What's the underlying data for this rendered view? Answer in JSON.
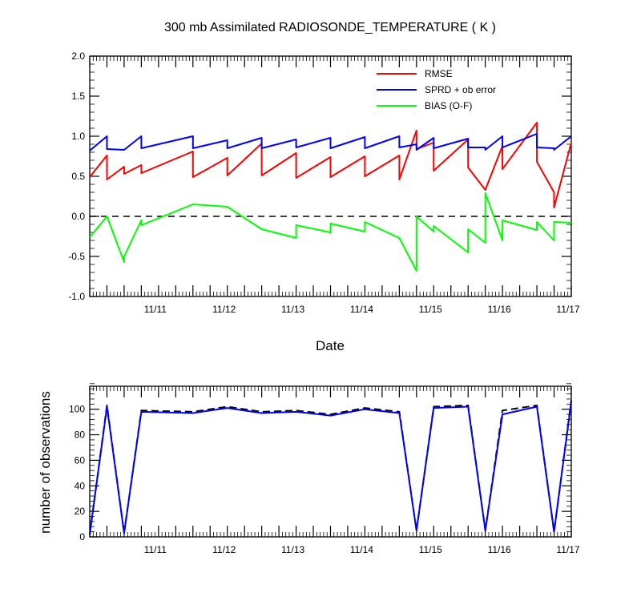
{
  "chart_data": [
    {
      "type": "line",
      "title": "300 mb Assimilated RADIOSONDE_TEMPERATURE ( K )",
      "xlabel": "Date",
      "ylabel": "",
      "x_unit": "days (Nov)",
      "xlim": [
        10.0,
        17.0
      ],
      "ylim": [
        -1.0,
        2.0
      ],
      "y_ticks": [
        -1.0,
        -0.5,
        0.0,
        0.5,
        1.0,
        1.5,
        2.0
      ],
      "y_tick_labels": [
        "-1.0",
        "-0.5",
        "0.0",
        "0.5",
        "1.0",
        "1.5",
        "2.0"
      ],
      "x_tick_labels": [
        {
          "x": 11,
          "label": "11/11"
        },
        {
          "x": 12,
          "label": "11/12"
        },
        {
          "x": 13,
          "label": "11/13"
        },
        {
          "x": 14,
          "label": "11/14"
        },
        {
          "x": 15,
          "label": "11/15"
        },
        {
          "x": 16,
          "label": "11/16"
        },
        {
          "x": 17,
          "label": "11/17"
        }
      ],
      "grid": false,
      "legend": "top-right",
      "reference_line": {
        "y": 0.0,
        "style": "dashed",
        "color": "#000000"
      },
      "series": [
        {
          "name": "RMSE",
          "color": "#ff0000",
          "points": [
            [
              10.0,
              0.49
            ],
            [
              10.25,
              0.76
            ],
            [
              10.25,
              0.46
            ],
            [
              10.5,
              0.62
            ],
            [
              10.5,
              0.53
            ],
            [
              10.75,
              0.64
            ],
            [
              10.75,
              0.54
            ],
            [
              11.5,
              0.81
            ],
            [
              11.5,
              0.49
            ],
            [
              12.0,
              0.73
            ],
            [
              12.0,
              0.51
            ],
            [
              12.5,
              0.91
            ],
            [
              12.5,
              0.51
            ],
            [
              13.0,
              0.79
            ],
            [
              13.0,
              0.48
            ],
            [
              13.5,
              0.74
            ],
            [
              13.5,
              0.49
            ],
            [
              14.0,
              0.75
            ],
            [
              14.0,
              0.5
            ],
            [
              14.5,
              0.76
            ],
            [
              14.5,
              0.46
            ],
            [
              14.75,
              1.07
            ],
            [
              14.75,
              0.84
            ],
            [
              15.0,
              0.92
            ],
            [
              15.0,
              0.57
            ],
            [
              15.5,
              0.96
            ],
            [
              15.5,
              0.61
            ],
            [
              15.75,
              0.33
            ],
            [
              16.0,
              0.88
            ],
            [
              16.0,
              0.59
            ],
            [
              16.5,
              1.17
            ],
            [
              16.5,
              0.68
            ],
            [
              16.75,
              0.3
            ],
            [
              16.75,
              0.11
            ],
            [
              17.0,
              0.92
            ]
          ]
        },
        {
          "name": "SPRD + ob error",
          "color": "#0000ff",
          "points": [
            [
              10.0,
              0.82
            ],
            [
              10.25,
              1.0
            ],
            [
              10.25,
              0.84
            ],
            [
              10.5,
              0.83
            ],
            [
              10.5,
              0.83
            ],
            [
              10.75,
              1.0
            ],
            [
              10.75,
              0.85
            ],
            [
              11.5,
              1.0
            ],
            [
              11.5,
              0.85
            ],
            [
              12.0,
              0.95
            ],
            [
              12.0,
              0.85
            ],
            [
              12.5,
              0.98
            ],
            [
              12.5,
              0.85
            ],
            [
              13.0,
              0.96
            ],
            [
              13.0,
              0.86
            ],
            [
              13.5,
              0.98
            ],
            [
              13.5,
              0.85
            ],
            [
              14.0,
              0.99
            ],
            [
              14.0,
              0.85
            ],
            [
              14.5,
              1.0
            ],
            [
              14.5,
              0.86
            ],
            [
              14.75,
              0.9
            ],
            [
              14.75,
              0.83
            ],
            [
              15.0,
              0.98
            ],
            [
              15.0,
              0.85
            ],
            [
              15.5,
              0.97
            ],
            [
              15.5,
              0.86
            ],
            [
              15.75,
              0.86
            ],
            [
              15.75,
              0.83
            ],
            [
              16.0,
              1.0
            ],
            [
              16.0,
              0.86
            ],
            [
              16.5,
              1.03
            ],
            [
              16.5,
              0.86
            ],
            [
              16.75,
              0.85
            ],
            [
              16.75,
              0.83
            ],
            [
              17.0,
              1.0
            ]
          ]
        },
        {
          "name": "BIAS (O-F)",
          "color": "#00ff00",
          "points": [
            [
              10.0,
              -0.26
            ],
            [
              10.25,
              0.0
            ],
            [
              10.5,
              -0.57
            ],
            [
              10.5,
              -0.5
            ],
            [
              10.75,
              -0.05
            ],
            [
              10.75,
              -0.11
            ],
            [
              11.5,
              0.15
            ],
            [
              12.0,
              0.12
            ],
            [
              12.5,
              -0.16
            ],
            [
              13.0,
              -0.27
            ],
            [
              13.0,
              -0.11
            ],
            [
              13.5,
              -0.2
            ],
            [
              13.5,
              -0.09
            ],
            [
              14.0,
              -0.19
            ],
            [
              14.0,
              -0.07
            ],
            [
              14.5,
              -0.27
            ],
            [
              14.75,
              -0.68
            ],
            [
              14.75,
              0.0
            ],
            [
              15.0,
              -0.19
            ],
            [
              15.0,
              -0.12
            ],
            [
              15.5,
              -0.45
            ],
            [
              15.5,
              -0.16
            ],
            [
              15.75,
              -0.33
            ],
            [
              15.75,
              0.29
            ],
            [
              16.0,
              -0.3
            ],
            [
              16.0,
              -0.05
            ],
            [
              16.5,
              -0.17
            ],
            [
              16.5,
              -0.07
            ],
            [
              16.75,
              -0.3
            ],
            [
              16.75,
              -0.07
            ],
            [
              17.0,
              -0.08
            ]
          ]
        }
      ]
    },
    {
      "type": "line",
      "title": "",
      "xlabel": "",
      "ylabel": "number of observations",
      "x_unit": "days (Nov)",
      "xlim": [
        10.0,
        17.0
      ],
      "ylim": [
        0,
        118
      ],
      "y_ticks": [
        0,
        20,
        40,
        60,
        80,
        100
      ],
      "y_tick_labels": [
        "0",
        "20",
        "40",
        "60",
        "80",
        "100"
      ],
      "x_tick_labels": [
        {
          "x": 11,
          "label": "11/11"
        },
        {
          "x": 12,
          "label": "11/12"
        },
        {
          "x": 13,
          "label": "11/13"
        },
        {
          "x": 14,
          "label": "11/14"
        },
        {
          "x": 15,
          "label": "11/15"
        },
        {
          "x": 16,
          "label": "11/16"
        },
        {
          "x": 17,
          "label": "11/17"
        }
      ],
      "grid": false,
      "legend": "none",
      "series": [
        {
          "style": "dashed",
          "color": "#000000",
          "points": [
            [
              10.0,
              2
            ],
            [
              10.25,
              103
            ],
            [
              10.5,
              3
            ],
            [
              10.75,
              99
            ],
            [
              11.5,
              98
            ],
            [
              12.0,
              102
            ],
            [
              12.5,
              98
            ],
            [
              13.0,
              99
            ],
            [
              13.5,
              96
            ],
            [
              14.0,
              101
            ],
            [
              14.5,
              98
            ],
            [
              14.75,
              5
            ],
            [
              15.0,
              102
            ],
            [
              15.5,
              103
            ],
            [
              15.75,
              5
            ],
            [
              16.0,
              99
            ],
            [
              16.5,
              103
            ],
            [
              16.75,
              4
            ],
            [
              17.0,
              107
            ]
          ]
        },
        {
          "style": "solid",
          "color": "#0000ff",
          "points": [
            [
              10.0,
              2
            ],
            [
              10.25,
              102
            ],
            [
              10.5,
              3
            ],
            [
              10.75,
              98
            ],
            [
              11.5,
              97
            ],
            [
              12.0,
              101
            ],
            [
              12.5,
              97
            ],
            [
              13.0,
              98
            ],
            [
              13.5,
              95
            ],
            [
              14.0,
              100
            ],
            [
              14.5,
              97
            ],
            [
              14.75,
              5
            ],
            [
              15.0,
              101
            ],
            [
              15.5,
              102
            ],
            [
              15.75,
              5
            ],
            [
              16.0,
              96
            ],
            [
              16.5,
              102
            ],
            [
              16.75,
              4
            ],
            [
              17.0,
              106
            ]
          ]
        }
      ]
    }
  ]
}
